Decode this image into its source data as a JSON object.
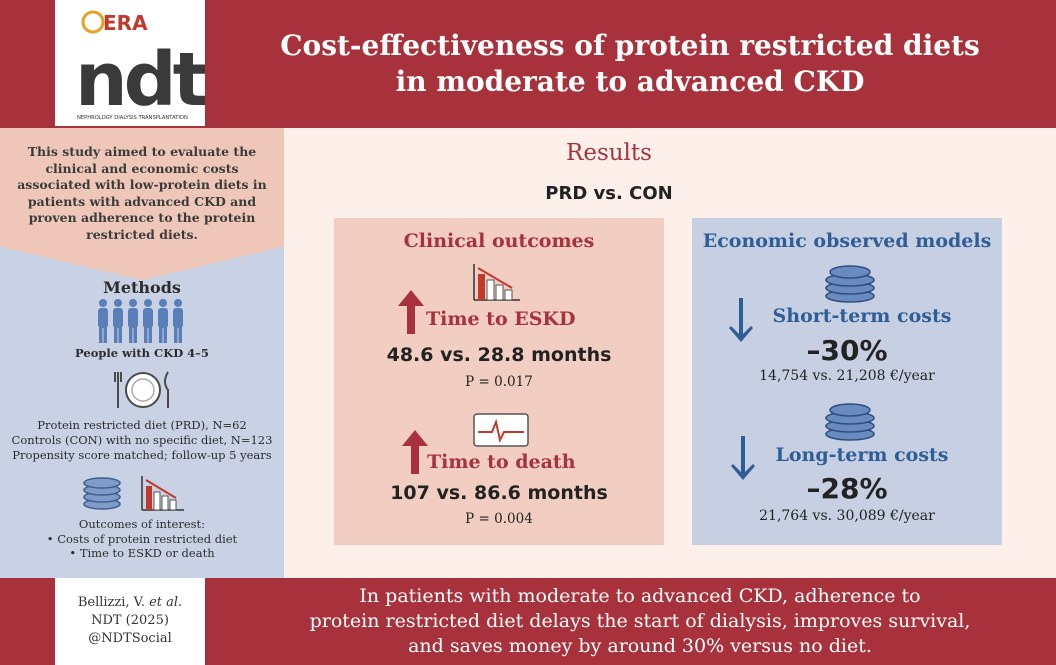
{
  "logo": {
    "era": "ERA",
    "ndt": "ndt",
    "tagline": "NEPHROLOGY DIALYSIS TRANSPLANTATION"
  },
  "title": {
    "line1": "Cost-effectiveness of protein restricted diets",
    "line2": "in moderate to advanced CKD"
  },
  "intro": [
    "This study aimed to evaluate the",
    "clinical and economic costs",
    "associated with low-protein diets in",
    "patients with advanced CKD and",
    "proven adherence to the protein",
    "restricted diets."
  ],
  "methods": {
    "heading": "Methods",
    "people": "People with CKD 4–5",
    "diet": [
      "Protein restricted diet (PRD), N=62",
      "Controls (CON) with no specific diet, N=123",
      "Propensity score matched; follow-up 5 years"
    ],
    "outcomes": [
      "Outcomes of interest:",
      "• Costs of protein restricted diet",
      "• Time to ESKD or death"
    ]
  },
  "results": {
    "heading": "Results",
    "comparison": "PRD vs. CON",
    "clinical": {
      "heading": "Clinical outcomes",
      "eskd": {
        "label": "Time to ESKD",
        "value": "48.6 vs. 28.8 months",
        "p": "P = 0.017"
      },
      "death": {
        "label": "Time to death",
        "value": "107 vs. 86.6 months",
        "p": "P = 0.004"
      }
    },
    "economic": {
      "heading": "Economic observed models",
      "short": {
        "label": "Short-term costs",
        "pct": "–30%",
        "value": "14,754 vs. 21,208 €/year"
      },
      "long": {
        "label": "Long-term costs",
        "pct": "–28%",
        "value": "21,764 vs. 30,089 €/year"
      }
    }
  },
  "citation": {
    "author": "Bellizzi, V.",
    "etal": "et al.",
    "journal": "NDT (2025)",
    "handle": "@NDTSocial"
  },
  "conclusion": [
    "In patients with moderate to advanced CKD, adherence to",
    "protein restricted diet delays the start of dialysis, improves survival,",
    "and saves money by around 30% versus no diet."
  ],
  "colors": {
    "brand_red": "#a8323b",
    "blue": "#2f5d95",
    "peach": "#efc7b8",
    "light_blue": "#c8d2e4"
  }
}
